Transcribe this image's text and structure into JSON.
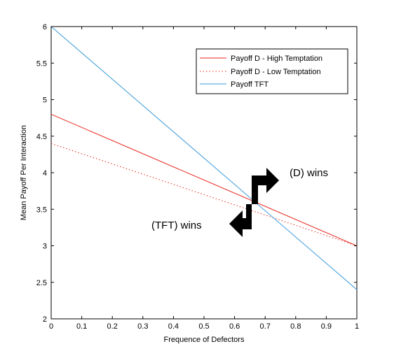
{
  "chart_data": {
    "type": "line",
    "title": "",
    "xlabel": "Frequence of Defectors",
    "ylabel": "Mean Payoff Per Interaction",
    "xlim": [
      0,
      1
    ],
    "ylim": [
      2,
      6
    ],
    "xticks": [
      "0",
      "0.1",
      "0.2",
      "0.3",
      "0.4",
      "0.5",
      "0.6",
      "0.7",
      "0.8",
      "0.9",
      "1"
    ],
    "yticks": [
      "2",
      "2.5",
      "3",
      "3.5",
      "4",
      "4.5",
      "5",
      "5.5",
      "6"
    ],
    "grid": false,
    "legend_position": "top-right",
    "series": [
      {
        "name": "Payoff D - High Temptation",
        "color": "#e8261c",
        "style": "solid",
        "x": [
          0,
          1
        ],
        "y": [
          4.8,
          3.0
        ]
      },
      {
        "name": "Payoff D - Low Temptation",
        "color": "#e8261c",
        "style": "dotted",
        "x": [
          0,
          1
        ],
        "y": [
          4.4,
          3.0
        ]
      },
      {
        "name": "Payoff TFT",
        "color": "#3a9ad9",
        "style": "solid",
        "x": [
          0,
          1
        ],
        "y": [
          6.0,
          2.4
        ]
      }
    ],
    "annotations": [
      {
        "text": "(D) wins",
        "arrow": "right"
      },
      {
        "text": "(TFT) wins",
        "arrow": "left"
      }
    ]
  }
}
